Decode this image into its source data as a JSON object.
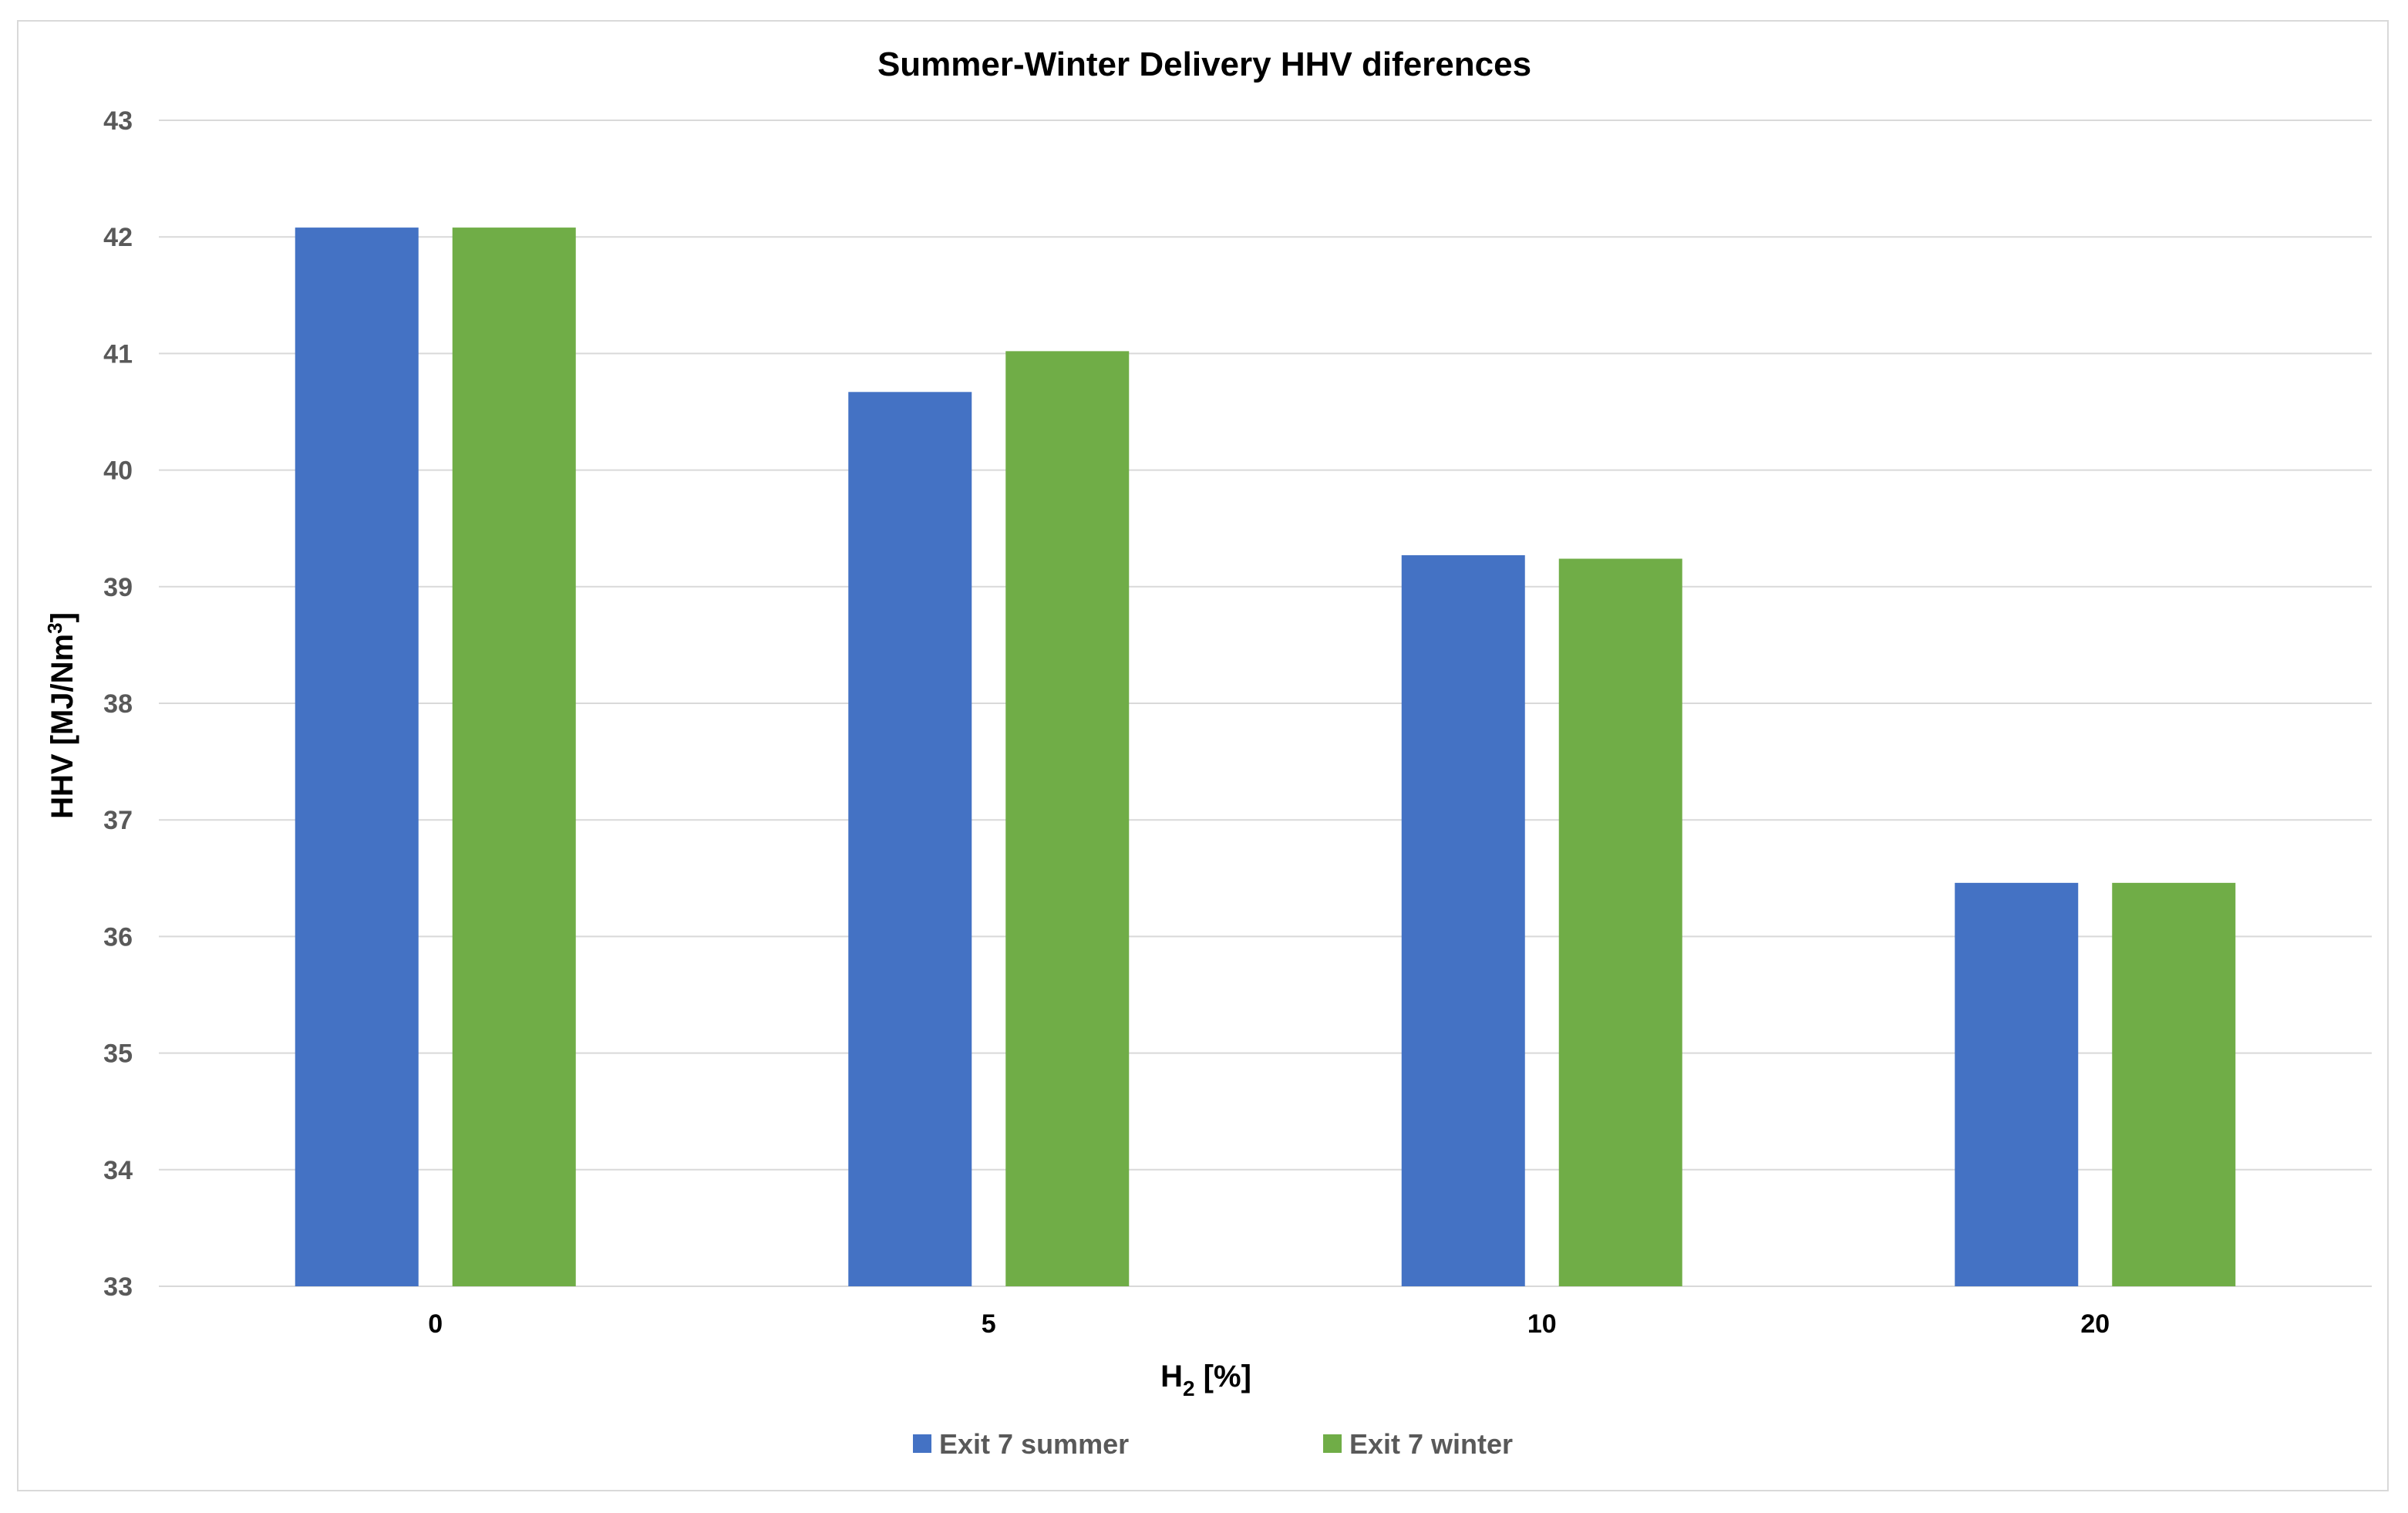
{
  "chart_data": {
    "type": "bar",
    "title": "Summer-Winter Delivery HHV diferences",
    "xlabel": {
      "base": "H",
      "subscript": "2",
      "suffix": " [%]"
    },
    "ylabel": {
      "base": "HHV [MJ/Nm",
      "superscript": "3",
      "suffix": "]"
    },
    "categories": [
      "0",
      "5",
      "10",
      "20"
    ],
    "ylim": [
      33,
      43
    ],
    "yticks": [
      33,
      34,
      35,
      36,
      37,
      38,
      39,
      40,
      41,
      42,
      43
    ],
    "grid": true,
    "legend_position": "bottom",
    "series": [
      {
        "name": "Exit 7 summer",
        "color": "#4472C4",
        "values": [
          42.08,
          40.67,
          39.27,
          36.46
        ]
      },
      {
        "name": "Exit 7 winter",
        "color": "#70AD47",
        "values": [
          42.08,
          41.02,
          39.24,
          36.46
        ]
      }
    ]
  }
}
